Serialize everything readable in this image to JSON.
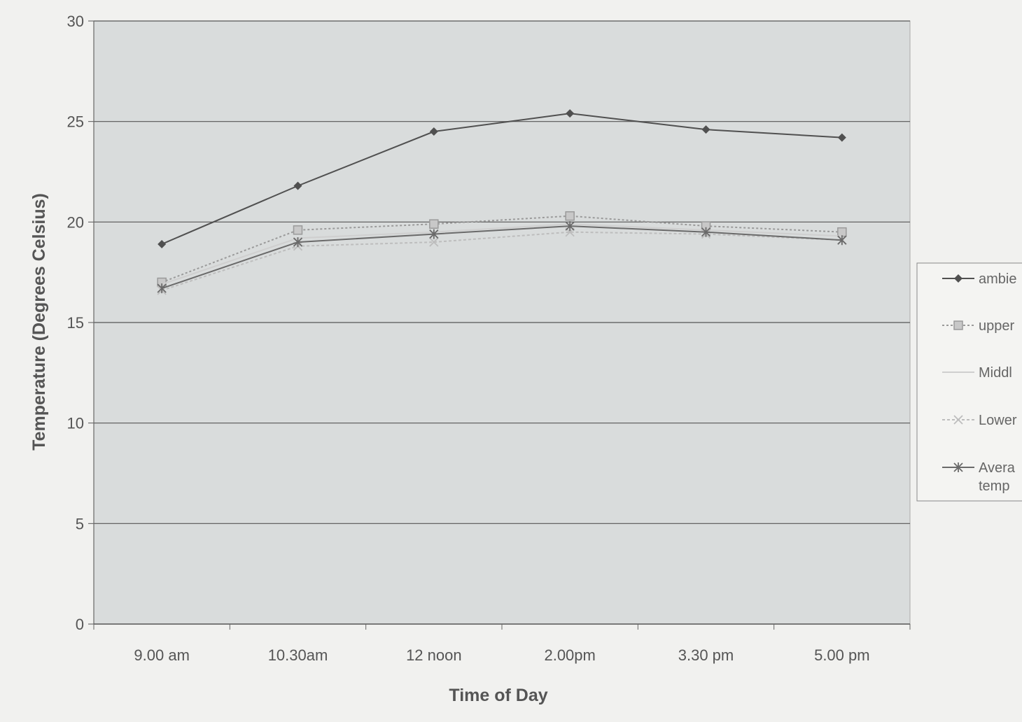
{
  "chart_data": {
    "type": "line",
    "title": "",
    "xlabel": "Time of Day",
    "ylabel": "Temperature (Degrees Celsius)",
    "categories": [
      "9.00 am",
      "10.30am",
      "12 noon",
      "2.00pm",
      "3.30 pm",
      "5.00 pm"
    ],
    "ylim": [
      0,
      30
    ],
    "yticks": [
      0,
      5,
      10,
      15,
      20,
      25,
      30
    ],
    "grid": true,
    "legend_position": "right",
    "series": [
      {
        "name": "ambie",
        "values": [
          18.9,
          21.8,
          24.5,
          25.4,
          24.6,
          24.2
        ],
        "color": "#505050",
        "marker": "diamond",
        "dash": ""
      },
      {
        "name": "upper",
        "values": [
          17.0,
          19.6,
          19.9,
          20.3,
          19.8,
          19.5
        ],
        "color": "#9a9a9a",
        "marker": "square",
        "dash": "3,3"
      },
      {
        "name": "Middl",
        "values": [
          16.9,
          19.2,
          19.5,
          19.9,
          19.6,
          19.3
        ],
        "color": "#cfcfcf",
        "marker": "none",
        "dash": ""
      },
      {
        "name": "Lower",
        "values": [
          16.6,
          18.8,
          19.0,
          19.5,
          19.4,
          19.1
        ],
        "color": "#bdbdbd",
        "marker": "x",
        "dash": "4,3"
      },
      {
        "name": "Avera\ntemp",
        "values": [
          16.7,
          19.0,
          19.4,
          19.8,
          19.5,
          19.1
        ],
        "color": "#6a6a6a",
        "marker": "star",
        "dash": ""
      }
    ]
  }
}
